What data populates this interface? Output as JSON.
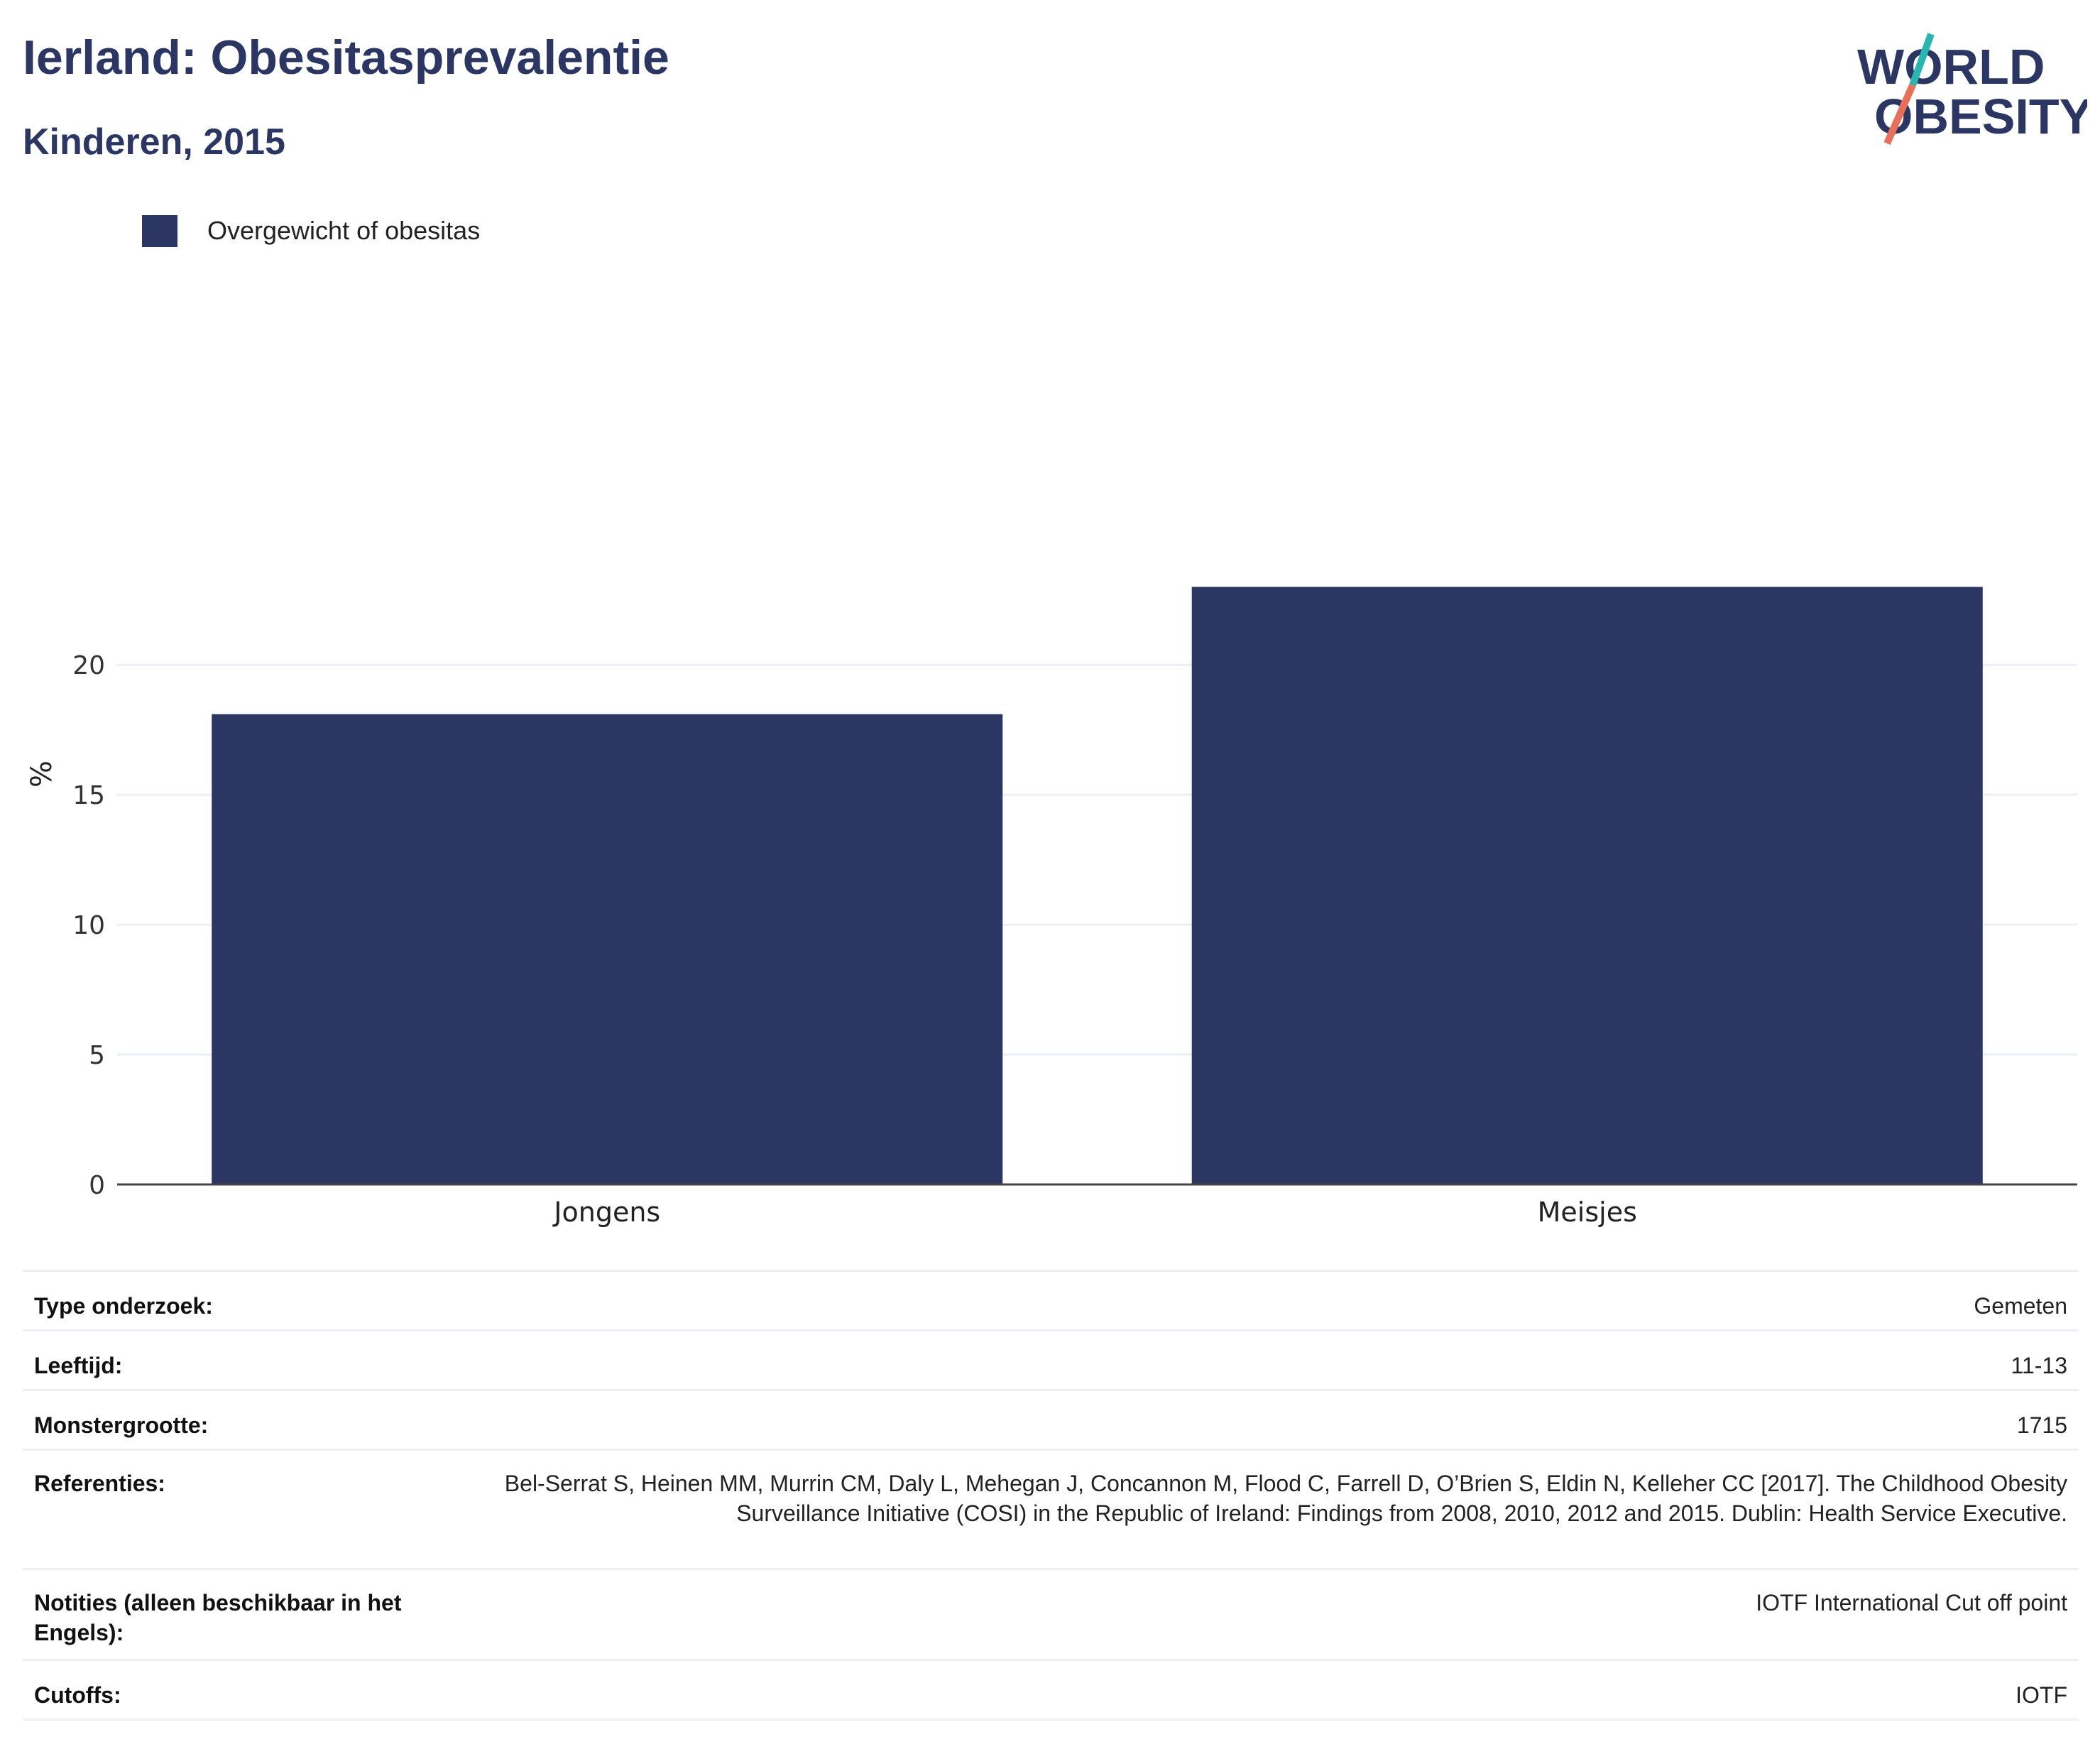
{
  "header": {
    "title": "Ierland: Obesitasprevalentie",
    "subtitle": "Kinderen, 2015"
  },
  "logo": {
    "line1": "WORLD",
    "line2": "OBESITY",
    "colors": {
      "text": "#2b3663",
      "slash_top": "#2bb5b0",
      "slash_bottom": "#e8705b"
    }
  },
  "legend": {
    "label": "Overgewicht of obesitas",
    "color": "#2b3663"
  },
  "chart_data": {
    "type": "bar",
    "categories": [
      "Jongens",
      "Meisjes"
    ],
    "series": [
      {
        "name": "Overgewicht of obesitas",
        "values": [
          18.1,
          23.0
        ],
        "color": "#2b3663"
      }
    ],
    "title": "Ierland: Obesitasprevalentie",
    "subtitle": "Kinderen, 2015",
    "xlabel": "",
    "ylabel": "%",
    "ylim": [
      0,
      25.5
    ],
    "yticks": [
      0,
      5,
      10,
      15,
      20
    ],
    "grid": true,
    "legend_position": "top-left"
  },
  "info_table": [
    {
      "key": "Type onderzoek:",
      "value": "Gemeten"
    },
    {
      "key": "Leeftijd:",
      "value": "11-13"
    },
    {
      "key": "Monstergrootte:",
      "value": "1715"
    },
    {
      "key": "Referenties:",
      "value": "Bel-Serrat S, Heinen MM, Murrin CM, Daly L, Mehegan J, Concannon M, Flood C, Farrell D, O’Brien S, Eldin N, Kelleher CC [2017]. The Childhood Obesity Surveillance Initiative (COSI) in the Republic of Ireland: Findings from 2008, 2010, 2012 and 2015. Dublin: Health Service Executive."
    },
    {
      "key": "Notities (alleen beschikbaar in het Engels):",
      "value": "IOTF International Cut off point"
    },
    {
      "key": "Cutoffs:",
      "value": "IOTF"
    }
  ]
}
